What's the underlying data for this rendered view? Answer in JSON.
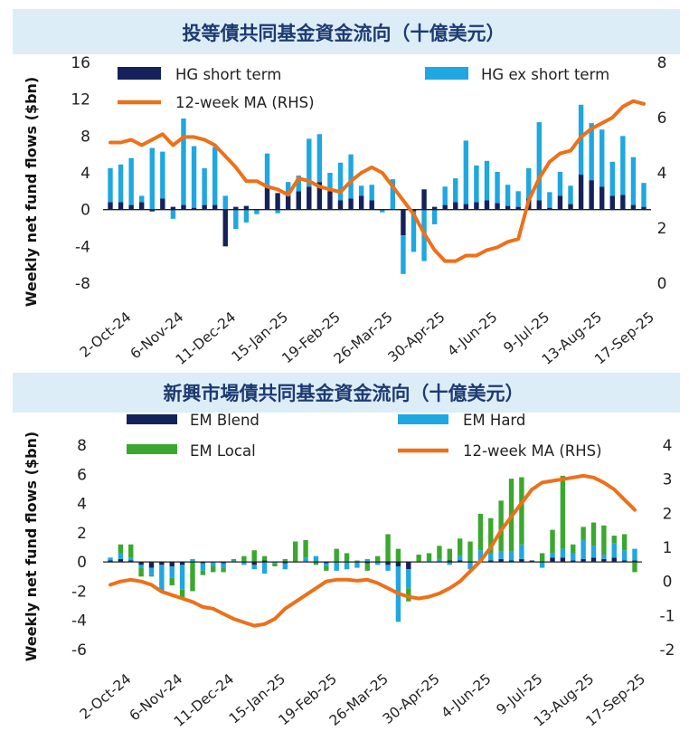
{
  "chart_data": [
    {
      "type": "bar",
      "title": "投等債共同基金資金流向（十億美元）",
      "ylabel": "Weekly net fund flows ($bn)",
      "ylim": [
        -8,
        16
      ],
      "y_ticks": [
        -8,
        -4,
        0,
        4,
        8,
        12,
        16
      ],
      "y2lim": [
        0,
        8
      ],
      "y2_ticks": [
        0,
        2,
        4,
        6,
        8
      ],
      "x_tick_labels": [
        "2-Oct-24",
        "6-Nov-24",
        "11-Dec-24",
        "15-Jan-25",
        "19-Feb-25",
        "26-Mar-25",
        "30-Apr-25",
        "4-Jun-25",
        "9-Jul-25",
        "13-Aug-25",
        "17-Sep-25"
      ],
      "x_tick_weeks": [
        0,
        5,
        10,
        15,
        20,
        25,
        30,
        35,
        40,
        45,
        50
      ],
      "colors": {
        "HG short term": "#14215a",
        "HG ex short term": "#1ea7e1",
        "12-week MA (RHS)": "#ee7018"
      },
      "series": [
        {
          "name": "HG short term",
          "kind": "stacked-bar",
          "values": [
            0.8,
            0.8,
            0.5,
            0.8,
            -0.2,
            1.2,
            0.3,
            0.5,
            0.2,
            0.5,
            0.5,
            -4,
            0.3,
            0.4,
            0,
            2.5,
            1.8,
            1.5,
            2,
            2.5,
            3,
            2,
            1,
            1.2,
            1.5,
            1,
            0,
            0,
            -2.8,
            -0.2,
            2.2,
            0.3,
            0.5,
            0.8,
            0.6,
            0.8,
            1,
            0.7,
            0.4,
            0.3,
            1.2,
            1,
            0.2,
            1.5,
            0.6,
            3.8,
            3.2,
            2.5,
            1.5,
            1.6,
            0.5,
            0.3
          ]
        },
        {
          "name": "HG ex short term",
          "kind": "stacked-bar",
          "values": [
            3.7,
            4.1,
            5.1,
            0.7,
            6.7,
            5.1,
            -1.0,
            9.4,
            6.7,
            4.0,
            6.3,
            1.5,
            -2.1,
            -1.4,
            -0.5,
            3.6,
            -0.4,
            1.5,
            1.7,
            5.2,
            5.2,
            2.0,
            4.1,
            4.8,
            1.1,
            1.7,
            -0.3,
            3.3,
            -4.2,
            -4.4,
            -5.6,
            -1.6,
            2.0,
            2.6,
            6.9,
            4.0,
            4.3,
            3.4,
            2.3,
            1.7,
            3.3,
            8.5,
            1.7,
            2.6,
            2.0,
            7.6,
            6.2,
            6.2,
            3.7,
            6.4,
            5.2,
            2.6
          ]
        },
        {
          "name": "12-week MA (RHS)",
          "kind": "line",
          "values": [
            5.1,
            5.1,
            5.2,
            5,
            5.2,
            5.4,
            5,
            5.3,
            5.3,
            5.2,
            5,
            4.6,
            4.2,
            3.7,
            3.7,
            3.5,
            3.4,
            3.2,
            3.8,
            3.7,
            3.5,
            3.4,
            3.3,
            3.7,
            4,
            4.2,
            4,
            3.5,
            3,
            2.5,
            1.8,
            1.2,
            0.8,
            0.8,
            1,
            1,
            1.2,
            1.3,
            1.5,
            1.6,
            3,
            3.8,
            4.4,
            4.7,
            4.8,
            5.3,
            5.6,
            5.8,
            6,
            6.4,
            6.6,
            6.5
          ]
        }
      ],
      "legend": [
        "HG short term",
        "HG ex short term",
        "12-week MA (RHS)"
      ]
    },
    {
      "type": "bar",
      "title": "新興市場債共同基金資金流向（十億美元）",
      "ylabel": "Weekly net fund flows ($bn)",
      "ylim": [
        -6,
        8
      ],
      "y_ticks": [
        -6,
        -4,
        -2,
        0,
        2,
        4,
        6,
        8
      ],
      "y2lim": [
        -2,
        4
      ],
      "y2_ticks": [
        -2,
        -1,
        0,
        1,
        2,
        3,
        4
      ],
      "x_tick_labels": [
        "2-Oct-24",
        "6-Nov-24",
        "11-Dec-24",
        "15-Jan-25",
        "19-Feb-25",
        "26-Mar-25",
        "30-Apr-25",
        "4-Jun-25",
        "9-Jul-25",
        "13-Aug-25",
        "17-Sep-25"
      ],
      "x_tick_weeks": [
        0,
        5,
        10,
        15,
        20,
        25,
        30,
        35,
        40,
        45,
        50
      ],
      "colors": {
        "EM Blend": "#14215a",
        "EM Hard": "#1ea7e1",
        "EM Local": "#3aa82e",
        "12-week MA (RHS)": "#ee7018"
      },
      "series": [
        {
          "name": "EM Blend",
          "kind": "stacked-bar",
          "values": [
            0.1,
            0.2,
            0.1,
            -0.2,
            -0.4,
            -0.2,
            -0.3,
            -0.2,
            0,
            -0.1,
            0,
            -0.1,
            0,
            0,
            -0.2,
            0.1,
            0,
            -0.1,
            0,
            0,
            0,
            -0.1,
            0,
            0,
            0,
            -0.1,
            0,
            -0.2,
            -0.3,
            -0.5,
            0,
            0,
            0,
            0.1,
            0.1,
            0,
            0.1,
            0.1,
            0.2,
            0.1,
            0.2,
            0.1,
            0,
            0.3,
            0.3,
            0.1,
            0.2,
            0.3,
            0.2,
            0.3,
            0.1,
            0.1
          ]
        },
        {
          "name": "EM Hard",
          "kind": "stacked-bar",
          "values": [
            0.2,
            0.4,
            0.2,
            -0.2,
            -0.5,
            -1.8,
            -0.8,
            -1.7,
            0.2,
            -0.5,
            -0.3,
            -0.3,
            0.1,
            -0.2,
            -0.3,
            -0.8,
            -0.1,
            -0.4,
            0,
            0.3,
            0.4,
            -0.2,
            -0.6,
            -0.5,
            -0.4,
            0.2,
            -0.2,
            -0.4,
            -3.8,
            -1.3,
            0,
            0.1,
            0.2,
            -0.2,
            0.3,
            -0.5,
            0.7,
            0.5,
            0.5,
            0.6,
            1,
            0,
            -0.4,
            0.3,
            0.6,
            0.5,
            1.3,
            0.8,
            0.3,
            1,
            0.7,
            0.8
          ]
        },
        {
          "name": "EM Local",
          "kind": "stacked-bar",
          "values": [
            0,
            0.6,
            0.9,
            -0.6,
            -0.1,
            0,
            -0.5,
            -0.6,
            -2,
            -0.3,
            -0.4,
            -0.3,
            0.1,
            0.4,
            0.8,
            0.3,
            -0.2,
            0.2,
            1.4,
            1.2,
            -0.2,
            -0.3,
            0.9,
            0.6,
            0.1,
            -0.5,
            0.4,
            1.9,
            0.9,
            -0.9,
            0.5,
            0.5,
            0.9,
            0.8,
            1.2,
            1.4,
            2.5,
            2.4,
            3.5,
            5,
            4.6,
            0,
            0.6,
            1.6,
            5,
            0.6,
            0.9,
            1.6,
            2,
            0.5,
            1.1,
            -0.7
          ]
        },
        {
          "name": "12-week MA (RHS)",
          "kind": "line",
          "values": [
            -0.1,
            0,
            0.05,
            0,
            -0.1,
            -0.3,
            -0.4,
            -0.5,
            -0.6,
            -0.75,
            -0.8,
            -0.95,
            -1.1,
            -1.2,
            -1.3,
            -1.25,
            -1.1,
            -0.8,
            -0.6,
            -0.4,
            -0.2,
            0,
            0.05,
            0.05,
            0.02,
            0.05,
            -0.05,
            -0.2,
            -0.35,
            -0.45,
            -0.5,
            -0.45,
            -0.35,
            -0.2,
            0,
            0.3,
            0.6,
            1,
            1.5,
            1.9,
            2.3,
            2.7,
            2.9,
            2.95,
            3,
            3.05,
            3.1,
            3.05,
            2.9,
            2.7,
            2.4,
            2.1
          ]
        }
      ],
      "legend": [
        "EM Blend",
        "EM Hard",
        "EM Local",
        "12-week MA (RHS)"
      ]
    }
  ]
}
